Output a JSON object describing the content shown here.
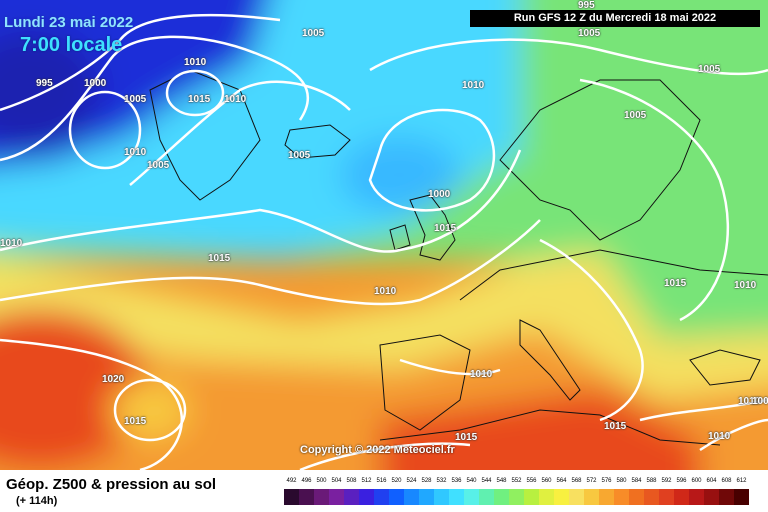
{
  "header": {
    "date": "Lundi 23 mai 2022",
    "local_time": "7:00 locale",
    "run_info": "Run GFS 12 Z du Mercredi 18 mai 2022"
  },
  "map": {
    "copyright": "Copyright © 2022 Meteociel.fr",
    "isobar_labels": [
      "995",
      "1005",
      "1005",
      "995",
      "1000",
      "1005",
      "1010",
      "1015",
      "1010",
      "1010",
      "1005",
      "1010",
      "1005",
      "1005",
      "1000",
      "1005",
      "1010",
      "1015",
      "1010",
      "1015",
      "1010",
      "1020",
      "1015",
      "1015",
      "1015",
      "1010",
      "1015",
      "1010",
      "1010",
      "1005"
    ]
  },
  "legend": {
    "title": "Géop. Z500 & pression au sol",
    "subtitle": "(+ 114h)",
    "scale_values": [
      "492",
      "496",
      "500",
      "504",
      "508",
      "512",
      "516",
      "520",
      "524",
      "528",
      "532",
      "536",
      "540",
      "544",
      "548",
      "552",
      "556",
      "560",
      "564",
      "568",
      "572",
      "576",
      "580",
      "584",
      "588",
      "592",
      "596",
      "600",
      "604",
      "608",
      "612"
    ],
    "scale_colors": [
      "#2a0a2e",
      "#4a1050",
      "#6a1a78",
      "#7a20a0",
      "#5a20c0",
      "#3a20e0",
      "#2040f0",
      "#1060ff",
      "#1888ff",
      "#20a8ff",
      "#30c8ff",
      "#40e0ff",
      "#58f0e8",
      "#60f0b0",
      "#70f080",
      "#90f060",
      "#b8f040",
      "#e0f040",
      "#f8f040",
      "#f8e060",
      "#f8c840",
      "#f8a830",
      "#f88c28",
      "#f07020",
      "#e85820",
      "#e04020",
      "#d02818",
      "#b81818",
      "#981010",
      "#700808",
      "#480000"
    ]
  },
  "colors": {
    "polar_low": "#1f2fd8",
    "cool": "#48d8ff",
    "green": "#78e478",
    "yellow": "#f4e060",
    "orange": "#f49a30",
    "red": "#e8481e",
    "land_coast": "#111111",
    "isobar": "#ffffff"
  }
}
